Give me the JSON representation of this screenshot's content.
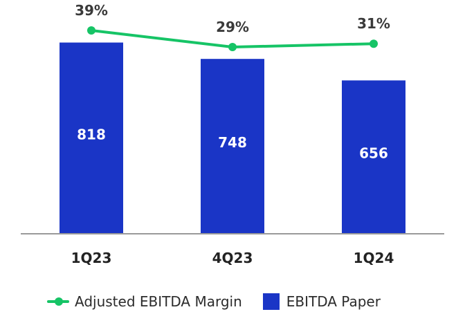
{
  "chart_data": {
    "type": "bar",
    "categories": [
      "1Q23",
      "4Q23",
      "1Q24"
    ],
    "series": [
      {
        "name": "EBITDA Paper",
        "kind": "bar",
        "values": [
          818,
          748,
          656
        ],
        "labels": [
          "818",
          "748",
          "656"
        ],
        "color": "#1a35c6"
      },
      {
        "name": "Adjusted EBITDA Margin",
        "kind": "line",
        "values": [
          39,
          29,
          31
        ],
        "labels": [
          "39%",
          "29%",
          "31%"
        ],
        "color": "#16c466"
      }
    ],
    "ylim": [
      0,
      1000
    ],
    "legend": "bottom",
    "grid": false
  },
  "legend": {
    "line_label": "Adjusted EBITDA Margin",
    "bar_label": "EBITDA Paper"
  },
  "colors": {
    "bar": "#1a35c6",
    "line": "#16c466",
    "axis": "#9a9a9a"
  }
}
